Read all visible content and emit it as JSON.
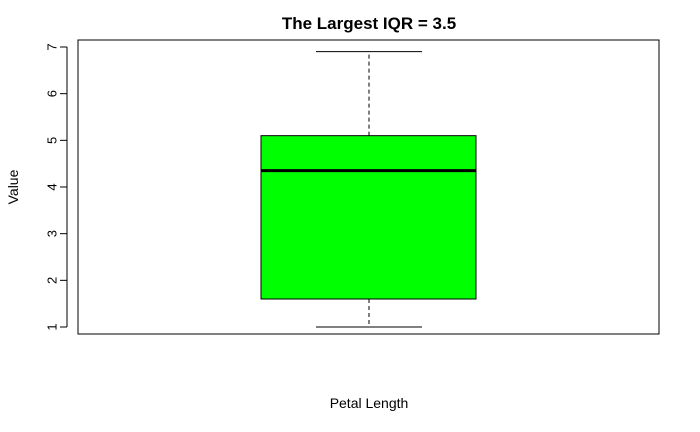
{
  "chart_data": {
    "type": "boxplot",
    "title": "The Largest IQR = 3.5",
    "xlabel": "Petal Length",
    "ylabel": "Value",
    "ylim": [
      0.85,
      7.15
    ],
    "yticks": [
      1,
      2,
      3,
      4,
      5,
      6,
      7
    ],
    "box": {
      "min": 1.0,
      "q1": 1.6,
      "median": 4.35,
      "q3": 5.1,
      "max": 6.9,
      "fill_color": "#00ff00"
    },
    "grid": false,
    "legend": "none"
  }
}
